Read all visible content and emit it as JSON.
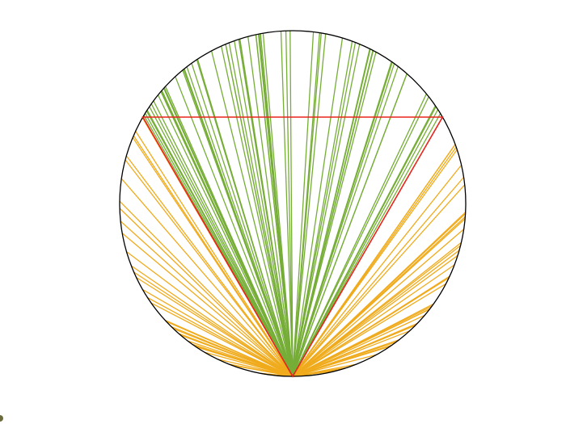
{
  "diagram": {
    "kind": "random chords from a fixed point on a circle (Bertrand paradox)",
    "chord_count": 150,
    "colors": {
      "circle": "#000000",
      "triangle": "#e8241c",
      "chord_longer": "#76ad37",
      "chord_shorter": "#f0ab1c",
      "corner_mark": "#6b6b3e"
    }
  }
}
